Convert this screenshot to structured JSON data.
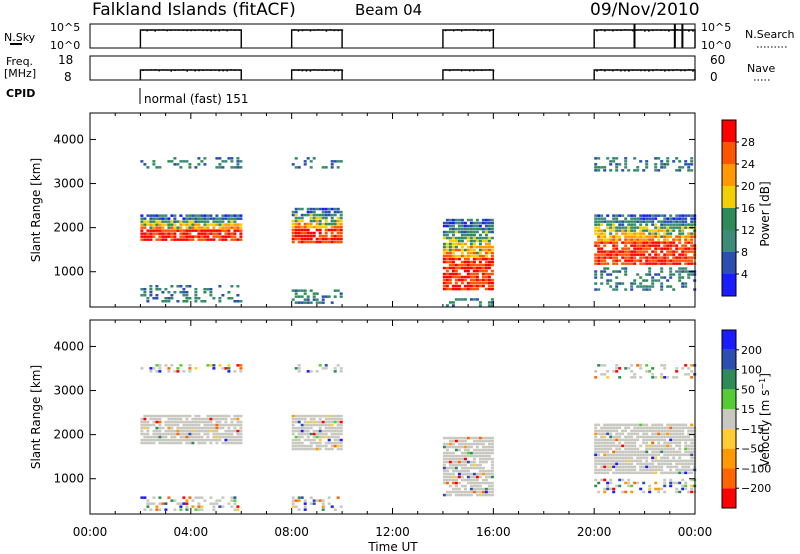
{
  "header": {
    "radar": "Falkland Islands (fitACF)",
    "beam": "Beam 04",
    "date": "09/Nov/2010"
  },
  "strips": {
    "nsky_label": "N.Sky",
    "nsky_ticks": [
      "10^5",
      "10^0"
    ],
    "nsearch_label": "N.Search",
    "freq_label_1": "Freq.",
    "freq_label_2": "[MHz]",
    "freq_ticks": [
      "18",
      "8"
    ],
    "nave_ticks": [
      "60",
      "0"
    ],
    "nave_label": "Nave",
    "cpid_label": "CPID",
    "cpid_value": "normal (fast) 151"
  },
  "colors": {
    "power": [
      "#1b1bff",
      "#2b4fb0",
      "#3c8a78",
      "#2e8b57",
      "#f0d000",
      "#ff9900",
      "#ff5500",
      "#ff0000"
    ],
    "velocity": [
      "#ff0000",
      "#ff6600",
      "#ff9900",
      "#ffcc33",
      "#c8c8c0",
      "#55cc33",
      "#2e8b57",
      "#2b4fb0",
      "#1b1bff"
    ]
  },
  "chart_data": [
    {
      "type": "heatmap",
      "title": "",
      "xlabel": "",
      "ylabel": "Slant Range [km]",
      "xlim": [
        0,
        24
      ],
      "ylim": [
        200,
        4600
      ],
      "x_ticks": [
        "00:00",
        "04:00",
        "08:00",
        "12:00",
        "16:00",
        "20:00",
        "00:00"
      ],
      "y_ticks": [
        1000,
        2000,
        3000,
        4000
      ],
      "colorbar": {
        "label": "Power [dB]",
        "ticks": [
          4,
          8,
          12,
          16,
          20,
          24,
          28
        ],
        "range": [
          0,
          32
        ]
      },
      "echo_regions": [
        {
          "start_h": 2.0,
          "end_h": 6.0,
          "ranges_km": [
            [
              1700,
              2300
            ],
            [
              3350,
              3600
            ],
            [
              300,
              700
            ]
          ]
        },
        {
          "start_h": 8.0,
          "end_h": 10.0,
          "ranges_km": [
            [
              1650,
              2450
            ],
            [
              3350,
              3600
            ],
            [
              300,
              600
            ]
          ]
        },
        {
          "start_h": 14.0,
          "end_h": 16.0,
          "ranges_km": [
            [
              600,
              2200
            ],
            [
              200,
              400
            ]
          ]
        },
        {
          "start_h": 20.0,
          "end_h": 24.0,
          "ranges_km": [
            [
              1200,
              2300
            ],
            [
              600,
              1100
            ],
            [
              3300,
              3600
            ]
          ]
        }
      ]
    },
    {
      "type": "heatmap",
      "title": "",
      "xlabel": "Time UT",
      "ylabel": "Slant Range [km]",
      "xlim": [
        0,
        24
      ],
      "ylim": [
        200,
        4600
      ],
      "x_ticks": [
        "00:00",
        "04:00",
        "08:00",
        "12:00",
        "16:00",
        "20:00",
        "00:00"
      ],
      "y_ticks": [
        1000,
        2000,
        3000,
        4000
      ],
      "colorbar": {
        "label": "Velocity [m s^-1]",
        "ticks": [
          -200,
          -100,
          -50,
          -15,
          15,
          50,
          100,
          200
        ],
        "tick_labels": [
          "−200",
          "−100",
          "−50",
          "−15",
          "15",
          "50",
          "100",
          "200"
        ]
      },
      "echo_regions": [
        {
          "start_h": 2.0,
          "end_h": 6.0,
          "ranges_km": [
            [
              1800,
              2450
            ],
            [
              3400,
              3600
            ],
            [
              300,
              600
            ]
          ]
        },
        {
          "start_h": 8.0,
          "end_h": 10.0,
          "ranges_km": [
            [
              1700,
              2450
            ],
            [
              3400,
              3600
            ],
            [
              300,
              600
            ]
          ]
        },
        {
          "start_h": 14.0,
          "end_h": 16.0,
          "ranges_km": [
            [
              600,
              1950
            ]
          ]
        },
        {
          "start_h": 20.0,
          "end_h": 24.0,
          "ranges_km": [
            [
              1100,
              2250
            ],
            [
              700,
              1000
            ],
            [
              3300,
              3600
            ]
          ]
        }
      ]
    }
  ]
}
